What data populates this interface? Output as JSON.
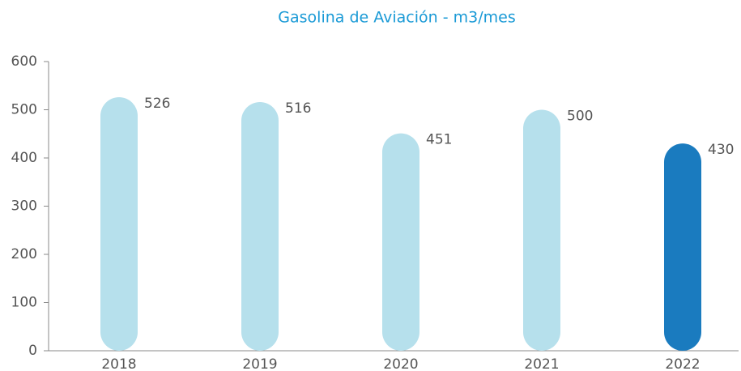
{
  "chart_data": {
    "type": "bar",
    "title": "Gasolina de Aviación - m3/mes",
    "categories": [
      "2018",
      "2019",
      "2020",
      "2021",
      "2022"
    ],
    "values": [
      526,
      516,
      451,
      500,
      430
    ],
    "colors": [
      "#b6e0ec",
      "#b6e0ec",
      "#b6e0ec",
      "#b6e0ec",
      "#1a7bbf"
    ],
    "ylim": [
      0,
      600
    ],
    "yticks": [
      0,
      100,
      200,
      300,
      400,
      500,
      600
    ],
    "grid": false
  }
}
